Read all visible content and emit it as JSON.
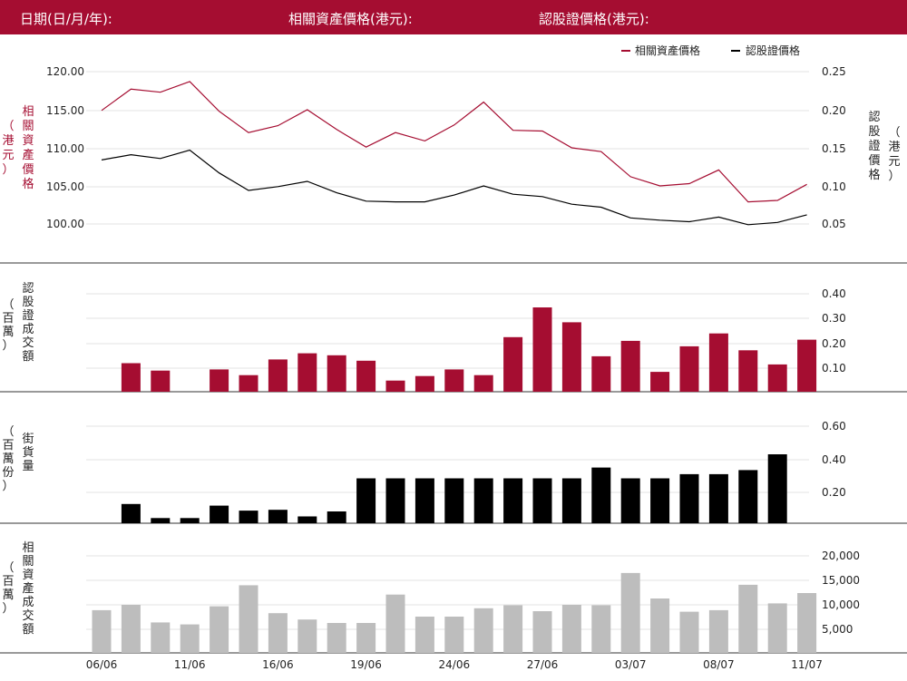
{
  "header": {
    "date_label": "日期(日/月/年):",
    "underlying_label": "相關資產價格(港元):",
    "warrant_label": "認股證價格(港元):"
  },
  "colors": {
    "header_bg": "#a50d31",
    "underlying": "#a50d31",
    "warrant": "#000000",
    "warrant_turnover_bar": "#a50d31",
    "outstanding_bar": "#000000",
    "underlying_turnover_bar": "#bdbdbd"
  },
  "chart_data": {
    "x_tick_labels": [
      "06/06",
      "11/06",
      "16/06",
      "19/06",
      "24/06",
      "27/06",
      "03/07",
      "08/07",
      "11/07"
    ],
    "x_tick_index": [
      0,
      3,
      6,
      9,
      12,
      15,
      18,
      21,
      24
    ],
    "price_panel": {
      "type": "line",
      "legend": [
        "相關資產價格",
        "認股證價格"
      ],
      "legend_placement": "top-right",
      "ylabel_left": "相關資產價格",
      "ylabel_left_unit": "（港元）",
      "ylabel_right": "認股證價格",
      "ylabel_right_unit": "（港元）",
      "left_ticks": [
        "120.00",
        "115.00",
        "110.00",
        "105.00",
        "100.00"
      ],
      "right_ticks": [
        "0.25",
        "0.20",
        "0.15",
        "0.10",
        "0.05"
      ],
      "ylim_left": [
        97.0,
        122.0
      ],
      "ylim_right": [
        0.02,
        0.27
      ],
      "series": [
        {
          "name": "相關資產價格",
          "axis": "left",
          "values": [
            114.9,
            117.7,
            117.3,
            118.7,
            114.8,
            112.0,
            112.9,
            115.0,
            112.4,
            110.1,
            112.0,
            110.9,
            113.0,
            116.0,
            112.3,
            112.2,
            110.0,
            109.5,
            106.2,
            105.0,
            105.3,
            107.1,
            102.9,
            103.1,
            105.2
          ]
        },
        {
          "name": "認股證價格",
          "axis": "right",
          "values": [
            0.134,
            0.141,
            0.136,
            0.147,
            0.117,
            0.094,
            0.099,
            0.106,
            0.091,
            0.08,
            0.079,
            0.079,
            0.088,
            0.1,
            0.089,
            0.086,
            0.076,
            0.072,
            0.058,
            0.055,
            0.053,
            0.059,
            0.049,
            0.052,
            0.062
          ]
        }
      ]
    },
    "warrant_turnover_panel": {
      "type": "bar",
      "ylabel": "認股證成交額",
      "ylabel_unit": "（百萬）",
      "ticks": [
        "0.40",
        "0.30",
        "0.20",
        "0.10"
      ],
      "ylim": [
        0,
        0.44
      ],
      "values": [
        null,
        0.12,
        0.09,
        null,
        0.095,
        0.072,
        0.135,
        0.16,
        0.152,
        0.13,
        0.05,
        0.068,
        0.095,
        0.072,
        0.225,
        0.345,
        0.285,
        0.148,
        0.21,
        0.085,
        0.188,
        0.24,
        0.172,
        0.115,
        0.215
      ]
    },
    "outstanding_panel": {
      "type": "bar",
      "ylabel": "街貨量",
      "ylabel_unit": "（百萬份）",
      "ticks": [
        "0.60",
        "0.40",
        "0.20"
      ],
      "ylim": [
        0,
        0.66
      ],
      "values": [
        null,
        0.13,
        0.045,
        0.045,
        0.12,
        0.09,
        0.095,
        0.055,
        0.085,
        0.285,
        0.285,
        0.285,
        0.285,
        0.285,
        0.285,
        0.285,
        0.285,
        0.35,
        0.285,
        0.285,
        0.31,
        0.31,
        0.335,
        0.43,
        null
      ]
    },
    "underlying_turnover_panel": {
      "type": "bar",
      "ylabel": "相關資產成交額",
      "ylabel_unit": "（百萬）",
      "ticks": [
        "20,000",
        "15,000",
        "10,000",
        "5,000"
      ],
      "ylim": [
        0,
        22000
      ],
      "values": [
        8900,
        10000,
        6400,
        6000,
        9700,
        14000,
        8300,
        7000,
        6300,
        6300,
        12100,
        7600,
        7600,
        9300,
        9900,
        8700,
        10000,
        9900,
        16500,
        11300,
        8600,
        8900,
        14100,
        10300,
        12400
      ]
    }
  }
}
